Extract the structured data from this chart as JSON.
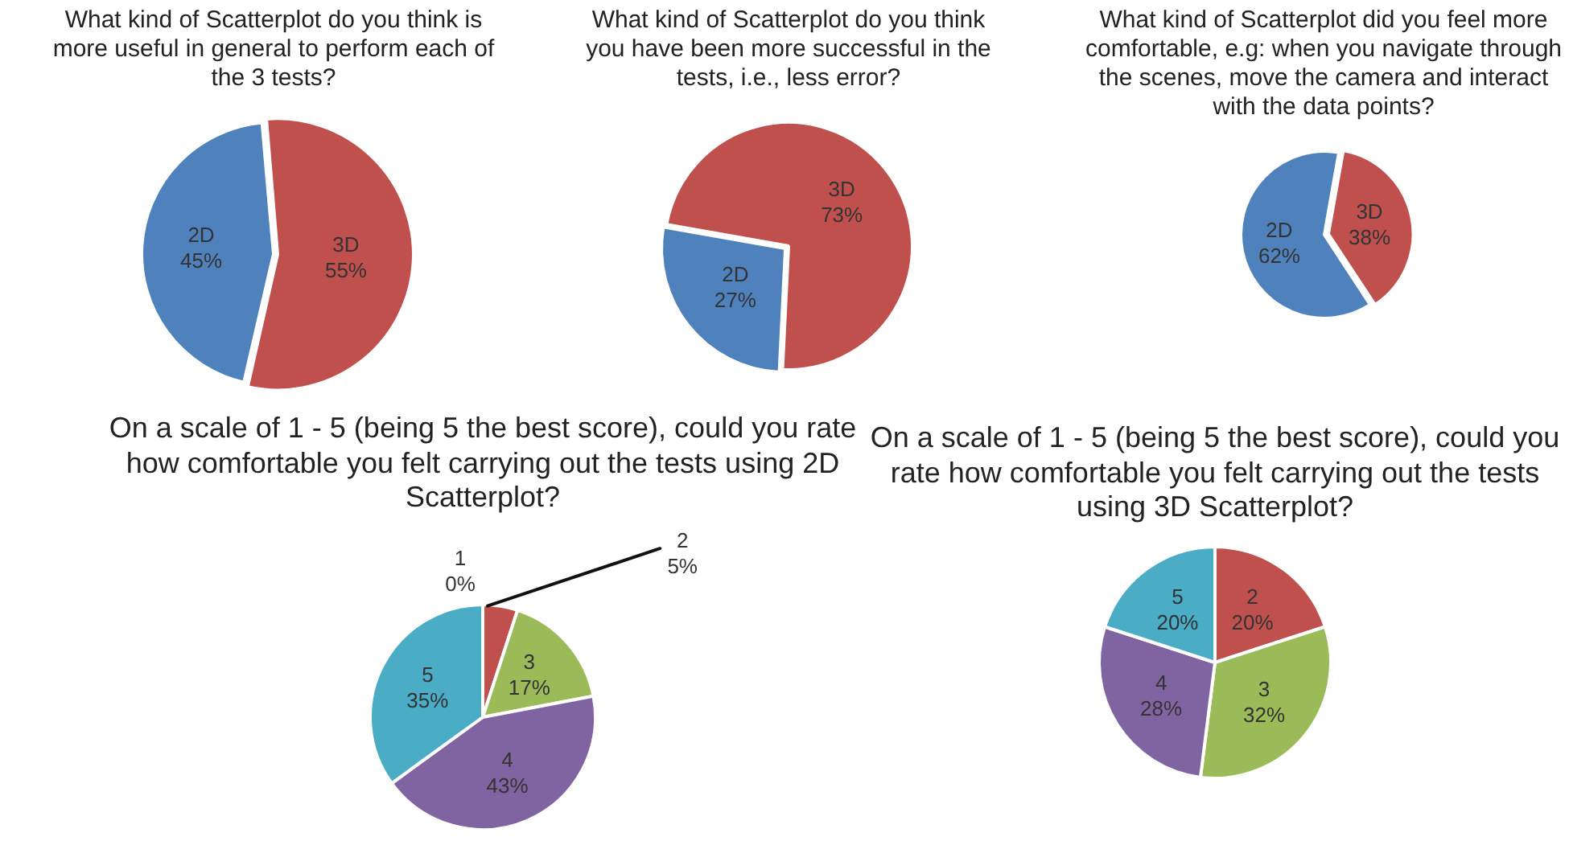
{
  "chart_data": [
    {
      "type": "pie",
      "title": "What kind of Scatterplot do you think is more useful in general to perform each of the 3 tests?",
      "categories": [
        "3D",
        "2D"
      ],
      "values": [
        55,
        45
      ],
      "colors": [
        "#c0504d",
        "#4f81bd"
      ],
      "value_labels": [
        "55%",
        "45%"
      ]
    },
    {
      "type": "pie",
      "title": "What kind of Scatterplot do you think you have been more successful in the tests, i.e., less error?",
      "categories": [
        "3D",
        "2D"
      ],
      "values": [
        73,
        27
      ],
      "colors": [
        "#c0504d",
        "#4f81bd"
      ],
      "value_labels": [
        "73%",
        "27%"
      ]
    },
    {
      "type": "pie",
      "title": "What kind of Scatterplot did you feel more comfortable, e.g: when you navigate through the scenes, move the camera and interact with the data points?",
      "categories": [
        "3D",
        "2D"
      ],
      "values": [
        38,
        62
      ],
      "colors": [
        "#c0504d",
        "#4f81bd"
      ],
      "value_labels": [
        "38%",
        "62%"
      ]
    },
    {
      "type": "pie",
      "title": "On a scale of 1 - 5 (being 5 the best score), could you rate how comfortable you felt carrying out the tests using 2D Scatterplot?",
      "categories": [
        "1",
        "2",
        "3",
        "4",
        "5"
      ],
      "values": [
        0,
        5,
        17,
        43,
        35
      ],
      "colors": [
        "#4f81bd",
        "#c0504d",
        "#9bbb59",
        "#8064a2",
        "#4bacc6"
      ],
      "value_labels": [
        "0%",
        "5%",
        "17%",
        "43%",
        "35%"
      ]
    },
    {
      "type": "pie",
      "title": "On a scale of 1 - 5 (being 5 the best score), could you rate how comfortable you felt carrying out the tests using 3D Scatterplot?",
      "categories": [
        "2",
        "3",
        "4",
        "5"
      ],
      "values": [
        20,
        32,
        28,
        20
      ],
      "colors": [
        "#c0504d",
        "#9bbb59",
        "#8064a2",
        "#4bacc6"
      ],
      "value_labels": [
        "20%",
        "32%",
        "28%",
        "20%"
      ]
    }
  ]
}
